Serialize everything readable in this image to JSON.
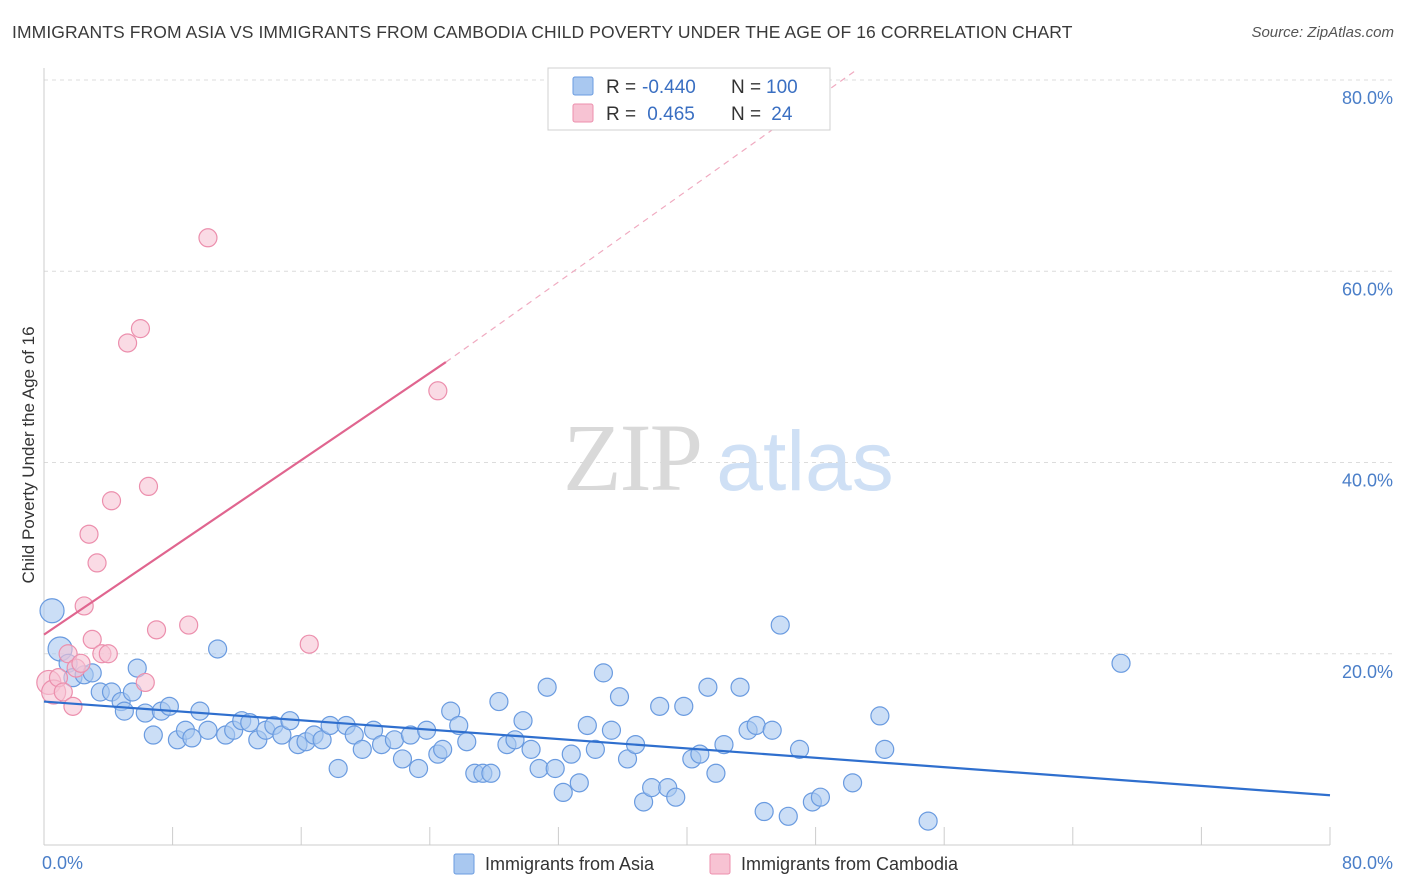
{
  "title": "IMMIGRANTS FROM ASIA VS IMMIGRANTS FROM CAMBODIA CHILD POVERTY UNDER THE AGE OF 16 CORRELATION CHART",
  "source": "Source: ZipAtlas.com",
  "watermark": {
    "zip": "ZIP",
    "atlas": "atlas"
  },
  "colors": {
    "asia_fill": "#a9c8f0",
    "asia_stroke": "#6a9be0",
    "asia_line": "#2f6fce",
    "cambodia_fill": "#f7c3d3",
    "cambodia_stroke": "#ec8fad",
    "cambodia_line": "#e0658f",
    "grid": "#dcdcdc",
    "tick_text": "#4a7ec8"
  },
  "legend": {
    "rows": [
      {
        "r_label": "R =",
        "r_value": "-0.440",
        "n_label": "N =",
        "n_value": "100"
      },
      {
        "r_label": "R =",
        "r_value": " 0.465",
        "n_label": "N =",
        "n_value": " 24"
      }
    ]
  },
  "chart_data": {
    "type": "scatter",
    "title": "IMMIGRANTS FROM ASIA VS IMMIGRANTS FROM CAMBODIA CHILD POVERTY UNDER THE AGE OF 16 CORRELATION CHART",
    "xlabel": "",
    "ylabel": "Child Poverty Under the Age of 16",
    "xlim": [
      0,
      80
    ],
    "ylim": [
      0,
      80
    ],
    "x_tick_labels": [
      "0.0%",
      "80.0%"
    ],
    "y_ticks": [
      20,
      40,
      60,
      80
    ],
    "y_tick_labels": [
      "20.0%",
      "40.0%",
      "60.0%",
      "80.0%"
    ],
    "grid": true,
    "legend_position": "top-center",
    "series": [
      {
        "name": "Immigrants from Asia",
        "r": -0.44,
        "n": 100,
        "trend": {
          "x0": 0,
          "y0": 15.0,
          "x1": 80,
          "y1": 5.2
        },
        "points": [
          [
            0.5,
            24.5,
            9
          ],
          [
            1.0,
            20.5,
            9
          ],
          [
            1.5,
            19.0,
            6
          ],
          [
            1.8,
            17.5,
            6
          ],
          [
            2.5,
            17.8,
            6
          ],
          [
            3.0,
            18.0,
            6
          ],
          [
            3.5,
            16.0,
            6
          ],
          [
            4.2,
            16.0,
            6
          ],
          [
            4.8,
            15.0,
            6
          ],
          [
            5.0,
            14.0,
            6
          ],
          [
            5.5,
            16.0,
            6
          ],
          [
            5.8,
            18.5,
            6
          ],
          [
            6.3,
            13.8,
            6
          ],
          [
            6.8,
            11.5,
            6
          ],
          [
            7.3,
            14.0,
            6
          ],
          [
            7.8,
            14.5,
            6
          ],
          [
            8.3,
            11.0,
            6
          ],
          [
            8.8,
            12.0,
            6
          ],
          [
            9.2,
            11.2,
            6
          ],
          [
            9.7,
            14.0,
            6
          ],
          [
            10.2,
            12.0,
            6
          ],
          [
            10.8,
            20.5,
            6
          ],
          [
            11.3,
            11.5,
            6
          ],
          [
            11.8,
            12.0,
            6
          ],
          [
            12.3,
            13.0,
            6
          ],
          [
            12.8,
            12.8,
            6
          ],
          [
            13.3,
            11.0,
            6
          ],
          [
            13.8,
            12.0,
            6
          ],
          [
            14.3,
            12.5,
            6
          ],
          [
            14.8,
            11.5,
            6
          ],
          [
            15.3,
            13.0,
            6
          ],
          [
            15.8,
            10.5,
            6
          ],
          [
            16.3,
            10.8,
            6
          ],
          [
            16.8,
            11.5,
            6
          ],
          [
            17.3,
            11.0,
            6
          ],
          [
            17.8,
            12.5,
            6
          ],
          [
            18.8,
            12.5,
            6
          ],
          [
            18.3,
            8.0,
            6
          ],
          [
            19.3,
            11.5,
            6
          ],
          [
            19.8,
            10.0,
            6
          ],
          [
            20.5,
            12.0,
            6
          ],
          [
            21.0,
            10.5,
            6
          ],
          [
            21.8,
            11.0,
            6
          ],
          [
            22.3,
            9.0,
            6
          ],
          [
            22.8,
            11.5,
            6
          ],
          [
            23.3,
            8.0,
            6
          ],
          [
            23.8,
            12.0,
            6
          ],
          [
            24.5,
            9.5,
            6
          ],
          [
            24.8,
            10.0,
            6
          ],
          [
            25.3,
            14.0,
            6
          ],
          [
            25.8,
            12.5,
            6
          ],
          [
            26.3,
            10.8,
            6
          ],
          [
            26.8,
            7.5,
            6
          ],
          [
            27.3,
            7.5,
            6
          ],
          [
            27.8,
            7.5,
            6
          ],
          [
            28.3,
            15.0,
            6
          ],
          [
            28.8,
            10.5,
            6
          ],
          [
            29.3,
            11.0,
            6
          ],
          [
            29.8,
            13.0,
            6
          ],
          [
            30.3,
            10.0,
            6
          ],
          [
            30.8,
            8.0,
            6
          ],
          [
            31.3,
            16.5,
            6
          ],
          [
            31.8,
            8.0,
            6
          ],
          [
            32.3,
            5.5,
            6
          ],
          [
            32.8,
            9.5,
            6
          ],
          [
            33.3,
            6.5,
            6
          ],
          [
            33.8,
            12.5,
            6
          ],
          [
            34.3,
            10.0,
            6
          ],
          [
            34.8,
            18.0,
            6
          ],
          [
            35.3,
            12.0,
            6
          ],
          [
            35.8,
            15.5,
            6
          ],
          [
            36.3,
            9.0,
            6
          ],
          [
            36.8,
            10.5,
            6
          ],
          [
            37.3,
            4.5,
            6
          ],
          [
            37.8,
            6.0,
            6
          ],
          [
            38.3,
            14.5,
            6
          ],
          [
            38.8,
            6.0,
            6
          ],
          [
            39.3,
            5.0,
            6
          ],
          [
            39.8,
            14.5,
            6
          ],
          [
            40.3,
            9.0,
            6
          ],
          [
            40.8,
            9.5,
            6
          ],
          [
            41.3,
            16.5,
            6
          ],
          [
            41.8,
            7.5,
            6
          ],
          [
            42.3,
            10.5,
            6
          ],
          [
            43.3,
            16.5,
            6
          ],
          [
            43.8,
            12.0,
            6
          ],
          [
            44.3,
            12.5,
            6
          ],
          [
            44.8,
            3.5,
            6
          ],
          [
            45.3,
            12.0,
            6
          ],
          [
            45.8,
            23.0,
            6
          ],
          [
            46.3,
            3.0,
            6
          ],
          [
            47.0,
            10.0,
            6
          ],
          [
            47.8,
            4.5,
            6
          ],
          [
            48.3,
            5.0,
            6
          ],
          [
            50.3,
            6.5,
            6
          ],
          [
            52.0,
            13.5,
            6
          ],
          [
            52.3,
            10.0,
            6
          ],
          [
            55.0,
            2.5,
            6
          ],
          [
            67.0,
            19.0,
            6
          ],
          [
            8.0,
            20.0,
            0
          ]
        ]
      },
      {
        "name": "Immigrants from Cambodia",
        "r": 0.465,
        "n": 24,
        "trend": {
          "x0": 0,
          "y0": 22.0,
          "x1": 25,
          "y1": 50.5,
          "dash_x1": 50.5,
          "dash_y1": 81.0
        },
        "points": [
          [
            0.3,
            17.0,
            9
          ],
          [
            0.6,
            16.0,
            9
          ],
          [
            0.9,
            17.5,
            6
          ],
          [
            1.2,
            16.0,
            6
          ],
          [
            1.5,
            20.0,
            6
          ],
          [
            1.8,
            14.5,
            6
          ],
          [
            2.0,
            18.5,
            6
          ],
          [
            2.3,
            19.0,
            6
          ],
          [
            2.5,
            25.0,
            6
          ],
          [
            2.8,
            32.5,
            6
          ],
          [
            3.0,
            21.5,
            6
          ],
          [
            3.3,
            29.5,
            6
          ],
          [
            3.6,
            20.0,
            6
          ],
          [
            4.0,
            20.0,
            6
          ],
          [
            4.2,
            36.0,
            6
          ],
          [
            5.2,
            52.5,
            6
          ],
          [
            6.0,
            54.0,
            6
          ],
          [
            6.3,
            17.0,
            6
          ],
          [
            6.5,
            37.5,
            6
          ],
          [
            7.0,
            22.5,
            6
          ],
          [
            9.0,
            23.0,
            6
          ],
          [
            10.2,
            63.5,
            6
          ],
          [
            16.5,
            21.0,
            6
          ],
          [
            24.5,
            47.5,
            6
          ]
        ]
      }
    ]
  }
}
